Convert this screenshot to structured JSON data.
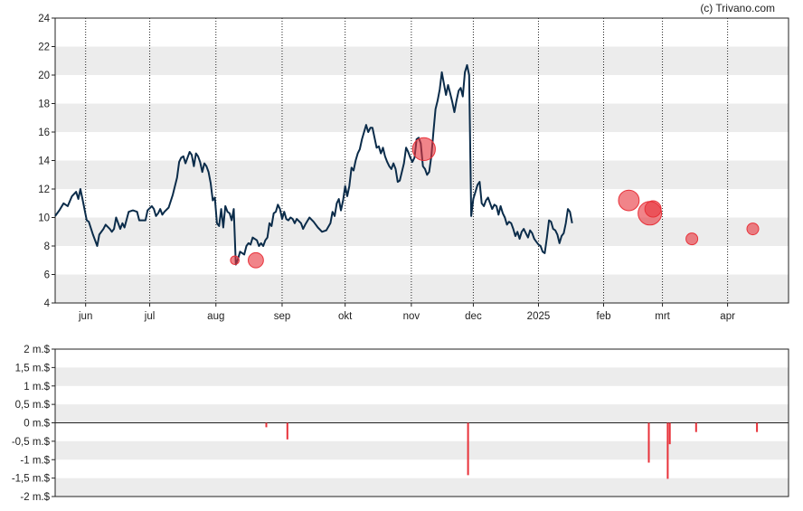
{
  "credit": "(c) Trivano.com",
  "chart_data": [
    {
      "type": "line",
      "y_ticks": [
        "4",
        "6",
        "8",
        "10",
        "12",
        "14",
        "16",
        "18",
        "20",
        "22",
        "24"
      ],
      "ylim": [
        4,
        24
      ],
      "x_ticks": [
        {
          "label": "jun",
          "x": 14.5
        },
        {
          "label": "jul",
          "x": 45
        },
        {
          "label": "aug",
          "x": 76.5
        },
        {
          "label": "sep",
          "x": 108
        },
        {
          "label": "okt",
          "x": 138
        },
        {
          "label": "nov",
          "x": 169.5
        },
        {
          "label": "dec",
          "x": 199
        },
        {
          "label": "2025",
          "x": 230
        },
        {
          "label": "feb",
          "x": 261
        },
        {
          "label": "mrt",
          "x": 289
        },
        {
          "label": "apr",
          "x": 320
        }
      ],
      "xlim": [
        0,
        349
      ],
      "grid": true,
      "series": [
        {
          "color": "#0b2c4a",
          "points": [
            [
              0,
              10.1
            ],
            [
              2,
              10.5
            ],
            [
              4,
              11.0
            ],
            [
              6,
              10.8
            ],
            [
              8,
              11.5
            ],
            [
              10,
              11.8
            ],
            [
              11,
              11.3
            ],
            [
              12,
              12.0
            ],
            [
              13,
              11.3
            ],
            [
              15,
              9.8
            ],
            [
              16,
              9.7
            ],
            [
              18,
              8.8
            ],
            [
              20,
              8.0
            ],
            [
              21,
              8.8
            ],
            [
              23,
              9.2
            ],
            [
              24,
              9.5
            ],
            [
              26,
              9.2
            ],
            [
              27,
              9.0
            ],
            [
              28,
              9.2
            ],
            [
              29,
              10.0
            ],
            [
              31,
              9.2
            ],
            [
              32,
              9.6
            ],
            [
              33,
              9.3
            ],
            [
              35,
              10.4
            ],
            [
              37,
              10.5
            ],
            [
              39,
              10.4
            ],
            [
              40,
              9.8
            ],
            [
              43,
              9.8
            ],
            [
              44,
              10.5
            ],
            [
              46,
              10.8
            ],
            [
              47,
              10.6
            ],
            [
              48,
              10.1
            ],
            [
              49,
              10.3
            ],
            [
              50,
              10.6
            ],
            [
              51,
              10.2
            ],
            [
              52,
              10.4
            ],
            [
              54,
              10.7
            ],
            [
              56,
              11.6
            ],
            [
              58,
              12.8
            ],
            [
              59,
              13.9
            ],
            [
              60,
              14.2
            ],
            [
              61,
              14.3
            ],
            [
              62,
              13.8
            ],
            [
              63,
              14.2
            ],
            [
              64,
              14.6
            ],
            [
              65,
              14.4
            ],
            [
              66,
              13.6
            ],
            [
              67,
              14.5
            ],
            [
              68,
              14.3
            ],
            [
              69,
              13.9
            ],
            [
              70,
              13.2
            ],
            [
              71,
              13.8
            ],
            [
              72,
              13.6
            ],
            [
              73,
              13.2
            ],
            [
              74,
              12.4
            ],
            [
              75,
              11.2
            ],
            [
              76,
              11.4
            ],
            [
              77,
              9.6
            ],
            [
              78,
              9.4
            ],
            [
              79,
              10.6
            ],
            [
              80,
              9.3
            ],
            [
              81,
              10.8
            ],
            [
              82,
              10.4
            ],
            [
              83,
              10.3
            ],
            [
              84,
              9.8
            ],
            [
              85,
              10.6
            ],
            [
              86,
              6.7
            ],
            [
              87,
              7.1
            ],
            [
              88,
              7.6
            ],
            [
              90,
              7.4
            ],
            [
              91,
              8.0
            ],
            [
              92,
              8.2
            ],
            [
              93,
              8.1
            ],
            [
              94,
              8.6
            ],
            [
              96,
              8.4
            ],
            [
              97,
              8.0
            ],
            [
              98,
              8.2
            ],
            [
              99,
              8.0
            ],
            [
              100,
              8.4
            ],
            [
              101,
              8.6
            ],
            [
              102,
              9.6
            ],
            [
              103,
              9.4
            ],
            [
              104,
              10.3
            ],
            [
              105,
              10.4
            ],
            [
              106,
              10.9
            ],
            [
              107,
              10.6
            ],
            [
              108,
              9.9
            ],
            [
              109,
              10.4
            ],
            [
              110,
              9.9
            ],
            [
              111,
              9.8
            ],
            [
              112,
              10.0
            ],
            [
              113,
              9.9
            ],
            [
              114,
              9.6
            ],
            [
              115,
              9.9
            ],
            [
              117,
              9.6
            ],
            [
              118,
              9.2
            ],
            [
              119,
              9.5
            ],
            [
              121,
              10.0
            ],
            [
              123,
              9.7
            ],
            [
              125,
              9.3
            ],
            [
              127,
              9.0
            ],
            [
              129,
              9.1
            ],
            [
              131,
              9.6
            ],
            [
              132,
              10.4
            ],
            [
              133,
              10.1
            ],
            [
              134,
              11.0
            ],
            [
              135,
              11.3
            ],
            [
              136,
              10.5
            ],
            [
              137,
              11.2
            ],
            [
              138,
              12.2
            ],
            [
              139,
              11.5
            ],
            [
              140,
              12.2
            ],
            [
              141,
              13.5
            ],
            [
              142,
              13.3
            ],
            [
              143,
              14.0
            ],
            [
              144,
              14.5
            ],
            [
              145,
              14.8
            ],
            [
              146,
              15.5
            ],
            [
              147,
              16.0
            ],
            [
              148,
              16.5
            ],
            [
              149,
              16.0
            ],
            [
              150,
              16.3
            ],
            [
              151,
              16.3
            ],
            [
              152,
              15.6
            ],
            [
              153,
              14.9
            ],
            [
              154,
              15.0
            ],
            [
              155,
              14.5
            ],
            [
              156,
              14.9
            ],
            [
              157,
              14.3
            ],
            [
              158,
              13.9
            ],
            [
              159,
              13.6
            ],
            [
              160,
              13.4
            ],
            [
              161,
              13.8
            ],
            [
              162,
              13.4
            ],
            [
              163,
              12.5
            ],
            [
              164,
              12.6
            ],
            [
              165,
              13.2
            ],
            [
              166,
              13.8
            ],
            [
              167,
              14.9
            ],
            [
              168,
              14.6
            ],
            [
              169,
              14.2
            ],
            [
              170,
              13.9
            ],
            [
              171,
              14.2
            ],
            [
              172,
              15.5
            ],
            [
              173,
              15.6
            ],
            [
              174,
              15.2
            ],
            [
              175,
              13.6
            ],
            [
              176,
              13.4
            ],
            [
              177,
              13.0
            ],
            [
              178,
              13.2
            ],
            [
              179,
              14.3
            ],
            [
              180,
              16.0
            ],
            [
              181,
              17.6
            ],
            [
              182,
              18.2
            ],
            [
              183,
              19.0
            ],
            [
              184,
              20.2
            ],
            [
              185,
              19.4
            ],
            [
              186,
              18.6
            ],
            [
              187,
              19.3
            ],
            [
              188,
              18.7
            ],
            [
              189,
              18.1
            ],
            [
              190,
              17.4
            ],
            [
              191,
              18.2
            ],
            [
              192,
              18.9
            ],
            [
              193,
              19.1
            ],
            [
              194,
              18.5
            ],
            [
              195,
              20.2
            ],
            [
              196,
              20.7
            ],
            [
              197,
              20.0
            ],
            [
              198,
              10.1
            ],
            [
              199,
              11.3
            ],
            [
              200,
              11.8
            ],
            [
              201,
              12.3
            ],
            [
              202,
              12.5
            ],
            [
              203,
              11.0
            ],
            [
              204,
              10.8
            ],
            [
              205,
              11.2
            ],
            [
              206,
              11.4
            ],
            [
              207,
              11.0
            ],
            [
              208,
              10.6
            ],
            [
              209,
              10.9
            ],
            [
              210,
              10.8
            ],
            [
              211,
              10.2
            ],
            [
              212,
              10.8
            ],
            [
              213,
              10.3
            ],
            [
              214,
              10.0
            ],
            [
              215,
              9.5
            ],
            [
              216,
              9.7
            ],
            [
              217,
              9.6
            ],
            [
              218,
              9.2
            ],
            [
              219,
              8.7
            ],
            [
              220,
              9.0
            ],
            [
              221,
              8.5
            ],
            [
              222,
              9.0
            ],
            [
              223,
              9.2
            ],
            [
              224,
              8.9
            ],
            [
              225,
              8.6
            ],
            [
              226,
              9.1
            ],
            [
              227,
              8.9
            ],
            [
              228,
              8.5
            ],
            [
              229,
              8.3
            ],
            [
              230,
              8.1
            ],
            [
              231,
              8.0
            ],
            [
              232,
              7.6
            ],
            [
              233,
              7.5
            ],
            [
              234,
              8.6
            ],
            [
              235,
              9.8
            ],
            [
              236,
              9.7
            ],
            [
              237,
              9.2
            ],
            [
              238,
              9.1
            ],
            [
              239,
              8.8
            ],
            [
              240,
              8.2
            ],
            [
              241,
              8.7
            ],
            [
              242,
              8.9
            ],
            [
              243,
              9.6
            ],
            [
              244,
              10.6
            ],
            [
              245,
              10.4
            ],
            [
              246,
              9.6
            ]
          ]
        }
      ],
      "markers": [
        {
          "x": 85.5,
          "y": 7.0,
          "size": 0.1
        },
        {
          "x": 95.5,
          "y": 7.0,
          "size": 0.5
        },
        {
          "x": 175.5,
          "y": 14.8,
          "size": 1.4
        },
        {
          "x": 273,
          "y": 11.2,
          "size": 1.1
        },
        {
          "x": 283,
          "y": 10.3,
          "size": 1.5
        },
        {
          "x": 284.5,
          "y": 10.6,
          "size": 0.6
        },
        {
          "x": 303,
          "y": 8.5,
          "size": 0.25
        },
        {
          "x": 332,
          "y": 9.2,
          "size": 0.25
        }
      ],
      "marker_color": "#e8323a"
    },
    {
      "type": "bar",
      "y_ticks": [
        "-2 m.$",
        "-1,5 m.$",
        "-1 m.$",
        "-0,5 m.$",
        "0 m.$",
        "0,5 m.$",
        "1 m.$",
        "1,5 m.$",
        "2 m.$"
      ],
      "ylim": [
        -2,
        2
      ],
      "xlim": [
        0,
        349
      ],
      "grid": true,
      "bar_color": "#e8323a",
      "bars": [
        {
          "x": 100.5,
          "value": -0.12
        },
        {
          "x": 110.5,
          "value": -0.45
        },
        {
          "x": 196.5,
          "value": -1.42
        },
        {
          "x": 282.5,
          "value": -1.08
        },
        {
          "x": 291.5,
          "value": -1.52
        },
        {
          "x": 292.5,
          "value": -0.58
        },
        {
          "x": 305,
          "value": -0.25
        },
        {
          "x": 334,
          "value": -0.25
        }
      ]
    }
  ]
}
